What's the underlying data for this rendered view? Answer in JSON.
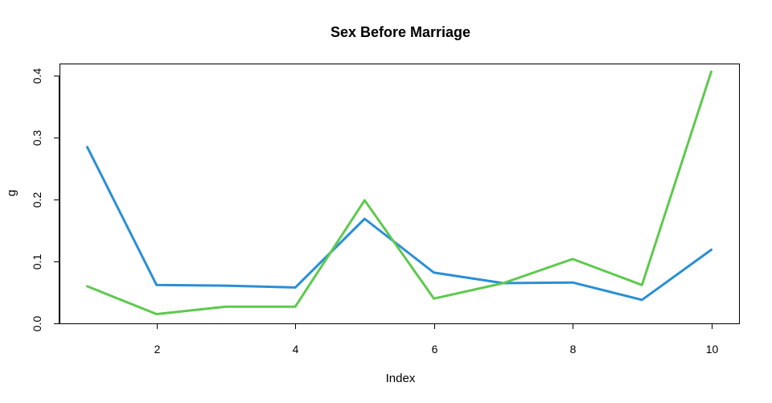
{
  "chart_data": {
    "type": "line",
    "title": "Sex Before Marriage",
    "xlabel": "Index",
    "ylabel": "g",
    "xlim": [
      0.6,
      10.4
    ],
    "ylim": [
      0,
      0.42
    ],
    "xticks": [
      2,
      4,
      6,
      8,
      10
    ],
    "yticks": [
      0.0,
      0.1,
      0.2,
      0.3,
      0.4
    ],
    "ytick_labels": [
      "0.0",
      "0.1",
      "0.2",
      "0.3",
      "0.4"
    ],
    "grid": false,
    "x": [
      1,
      2,
      3,
      4,
      5,
      6,
      7,
      8,
      9,
      10
    ],
    "series": [
      {
        "color": "#2b8fd6",
        "values": [
          0.285,
          0.062,
          0.061,
          0.058,
          0.169,
          0.082,
          0.065,
          0.066,
          0.038,
          0.119
        ]
      },
      {
        "color": "#5ec94e",
        "values": [
          0.06,
          0.015,
          0.027,
          0.027,
          0.199,
          0.04,
          0.065,
          0.104,
          0.062,
          0.407
        ]
      }
    ]
  }
}
